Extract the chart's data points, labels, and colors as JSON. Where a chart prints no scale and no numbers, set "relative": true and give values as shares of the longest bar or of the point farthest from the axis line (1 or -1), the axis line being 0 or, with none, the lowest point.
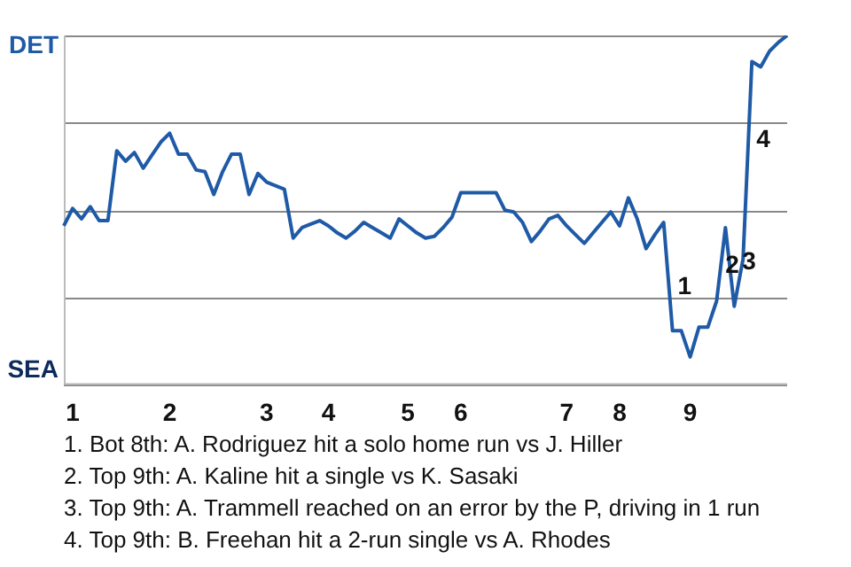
{
  "chart_data": {
    "type": "line",
    "relative": true,
    "tick_labels": "x",
    "categories": [
      null,
      "1",
      null,
      null,
      null,
      null,
      null,
      null,
      null,
      null,
      null,
      null,
      "2",
      null,
      null,
      null,
      null,
      null,
      null,
      null,
      null,
      null,
      null,
      "3",
      null,
      null,
      null,
      null,
      null,
      null,
      "4",
      null,
      null,
      null,
      null,
      null,
      null,
      null,
      null,
      "5",
      null,
      null,
      null,
      null,
      null,
      "6",
      null,
      null,
      null,
      null,
      null,
      null,
      null,
      null,
      null,
      null,
      null,
      "7",
      null,
      null,
      null,
      null,
      null,
      "8",
      null,
      null,
      null,
      null,
      null,
      null,
      null,
      "9",
      null,
      null,
      null,
      null,
      null,
      null,
      null,
      null,
      null,
      null,
      null
    ],
    "series": [
      {
        "color": "#1f5aa6",
        "values": [
          0.455,
          0.505,
          0.475,
          0.51,
          0.47,
          0.47,
          0.67,
          0.64,
          0.665,
          0.62,
          0.658,
          0.695,
          0.72,
          0.66,
          0.66,
          0.615,
          0.61,
          0.545,
          0.61,
          0.66,
          0.66,
          0.545,
          0.605,
          0.58,
          0.57,
          0.56,
          0.42,
          0.45,
          0.46,
          0.47,
          0.455,
          0.435,
          0.42,
          0.44,
          0.465,
          0.45,
          0.435,
          0.42,
          0.475,
          0.455,
          0.435,
          0.42,
          0.425,
          0.45,
          0.48,
          0.55,
          0.55,
          0.55,
          0.55,
          0.55,
          0.5,
          0.495,
          0.465,
          0.41,
          0.44,
          0.475,
          0.485,
          0.455,
          0.43,
          0.405,
          0.435,
          0.465,
          0.495,
          0.455,
          0.535,
          0.475,
          0.39,
          0.43,
          0.465,
          0.155,
          0.155,
          0.08,
          0.165,
          0.165,
          0.24,
          0.45,
          0.225,
          0.36,
          0.925,
          0.91,
          0.955,
          0.98,
          1
        ]
      }
    ],
    "grid": "y",
    "marker": "none",
    "annotations": [
      "DET",
      "SEA",
      "1",
      "2",
      "3",
      "4",
      "1. Bot 8th: A. Rodriguez hit a solo home run vs J. Hiller",
      "2. Top 9th: A. Kaline hit a single vs K. Sasaki",
      "3. Top 9th: A. Trammell reached on an error by the P, driving in 1 run",
      "4. Top 9th: B. Freehan hit a 2-run single vs A. Rhodes"
    ]
  }
}
